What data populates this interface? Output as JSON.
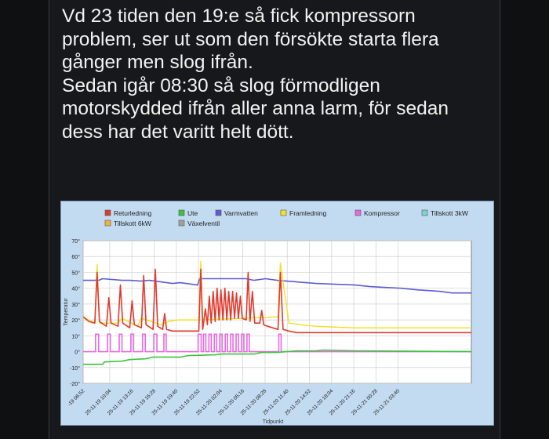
{
  "message": {
    "line1": "Vd 23 tiden den 19:e så fick kompressorn",
    "line2": "problem, ser ut som den försökte starta flera",
    "line3": "gånger men slog ifrån.",
    "line4": "Sedan igår 08:30 så slog förmodligen",
    "line5": "motorskydded ifrån aller anna larm, för sedan",
    "line6": "dess har det varitt helt dött."
  },
  "chart_data": {
    "type": "line",
    "ylabel": "Temperatur",
    "xlabel": "Tidpunkt",
    "ylim": [
      -20,
      70
    ],
    "yticks": [
      "70°",
      "60°",
      "50°",
      "40°",
      "30°",
      "20°",
      "10°",
      "0°",
      "-10°",
      "-20°"
    ],
    "xlim": [
      0,
      100
    ],
    "xticks": [
      "-19 06:52",
      "25-11-19 10:04",
      "25-11-19 13:16",
      "25-11-19 16:28",
      "25-11-19 19:40",
      "25-11-19 22:52",
      "25-11-20 02:04",
      "25-11-20 05:16",
      "25-11-20 08:28",
      "25-11-20 11:40",
      "25-11-20 14:52",
      "25-11-20 18:04",
      "25-11-20 21:16",
      "25-11-21 00:28",
      "25-11-21 03:40"
    ],
    "xtick_positions": [
      0,
      6.86,
      12.57,
      18.29,
      24.0,
      29.71,
      35.43,
      41.14,
      46.86,
      52.57,
      58.29,
      64.0,
      69.71,
      75.43,
      81.14
    ],
    "grid": true,
    "legend_position": "top",
    "legend": [
      {
        "name": "Returledning",
        "color": "#e03a2e"
      },
      {
        "name": "Ute",
        "color": "#39c43e"
      },
      {
        "name": "Varmvatten",
        "color": "#5b5cd6"
      },
      {
        "name": "Framledning",
        "color": "#f2e22b"
      },
      {
        "name": "Kompressor",
        "color": "#e56be0"
      },
      {
        "name": "Tillskott 3kW",
        "color": "#7ad6c9"
      },
      {
        "name": "Tillskott 6kW",
        "color": "#f2b23a"
      },
      {
        "name": "Växelventil",
        "color": "#a0a0a0"
      }
    ],
    "series": [
      {
        "name": "Varmvatten",
        "color": "#5b5cd6",
        "width": 1.6,
        "x": [
          0,
          4,
          5,
          10,
          12,
          15,
          17,
          23,
          25,
          29.5,
          30,
          42,
          44,
          47,
          50,
          55,
          60,
          65,
          70,
          74,
          78,
          82,
          86,
          89,
          92,
          95,
          100
        ],
        "y": [
          45,
          45,
          46,
          45,
          45,
          44.5,
          45,
          43,
          43.5,
          42,
          46,
          46,
          45,
          46,
          45,
          44,
          43,
          42.5,
          42,
          41,
          40.5,
          40,
          39,
          38.5,
          38,
          37,
          37
        ]
      },
      {
        "name": "Ute",
        "color": "#39c43e",
        "width": 1.6,
        "x": [
          0,
          5,
          5.5,
          10,
          12,
          16,
          18,
          25,
          27,
          34,
          36,
          44,
          46,
          50,
          55,
          60,
          62,
          70,
          100
        ],
        "y": [
          -8,
          -8,
          -6.5,
          -6,
          -5,
          -4.5,
          -3.5,
          -3.5,
          -2.5,
          -2,
          -1.5,
          -1.5,
          -0.5,
          -0.5,
          0.5,
          0.5,
          1,
          0.5,
          0
        ]
      },
      {
        "name": "Framledning",
        "color": "#f2e22b",
        "width": 1.5,
        "x": [
          0,
          3,
          3.6,
          4.2,
          9,
          10,
          14,
          15,
          20,
          22,
          24.5,
          29.8,
          30.3,
          30.8,
          50.2,
          50.8,
          53,
          56,
          60,
          70,
          100
        ],
        "y": [
          22,
          18,
          55,
          18,
          18,
          21,
          16,
          21,
          17,
          19,
          20,
          20,
          57,
          20,
          22,
          56,
          18,
          17,
          16,
          15,
          15
        ]
      },
      {
        "name": "Returledning",
        "color": "#e03a2e",
        "width": 1.6,
        "x": [
          0,
          1.5,
          3,
          3.6,
          4.2,
          6,
          6.6,
          7.2,
          9,
          9.6,
          10.2,
          12,
          12.6,
          13.2,
          15,
          15.6,
          16.2,
          18,
          18.6,
          19.2,
          20.5,
          21,
          21.5,
          23,
          29.8,
          30.3,
          30.8,
          31.5,
          32,
          32.5,
          33,
          33.5,
          34,
          34.5,
          35,
          35.5,
          36,
          36.5,
          37,
          37.5,
          38,
          38.5,
          39,
          39.5,
          40,
          40.5,
          41,
          42,
          42.5,
          43,
          43.6,
          44.2,
          45.5,
          46,
          46.5,
          47.5,
          50.2,
          50.8,
          51.5,
          53,
          55,
          58,
          60,
          70,
          80,
          100
        ],
        "y": [
          22,
          19,
          18,
          50,
          19,
          16,
          34,
          18,
          16,
          42,
          18,
          15,
          32,
          17,
          15,
          48,
          17,
          14,
          52,
          16,
          14,
          24,
          14,
          13,
          13,
          52,
          14,
          27,
          17,
          35,
          18,
          38,
          19,
          40,
          20,
          39,
          20,
          40,
          20,
          38,
          20,
          38,
          21,
          37,
          21,
          35,
          21,
          20,
          50,
          19,
          38,
          18,
          18,
          26,
          17,
          16,
          14,
          50,
          14,
          13,
          12,
          12,
          12,
          12,
          12,
          12
        ]
      },
      {
        "name": "Tillskott 6kW",
        "color": "#f2b23a",
        "width": 1.3,
        "x": [
          0,
          3.4,
          3.6,
          3.8,
          9.6,
          9.8,
          10.0,
          15.4,
          15.6,
          15.8,
          18.4,
          18.6,
          18.8,
          20.8,
          21.0,
          21.2,
          30.1,
          30.3,
          30.5,
          32.8,
          33.0,
          33.2,
          34.3,
          34.5,
          34.7,
          35.8,
          36.0,
          36.2,
          37.3,
          37.5,
          37.7,
          38.8,
          39.0,
          39.2,
          40.3,
          40.5,
          40.7,
          42.3,
          42.5,
          42.7,
          50.6,
          50.8,
          51.0,
          100
        ],
        "y": [
          null,
          null,
          58,
          null,
          null,
          53,
          null,
          null,
          54,
          null,
          null,
          55,
          null,
          null,
          32,
          null,
          null,
          57,
          null,
          null,
          44,
          null,
          null,
          45,
          null,
          null,
          45,
          null,
          null,
          43,
          null,
          null,
          42,
          null,
          null,
          40,
          null,
          null,
          57,
          null,
          null,
          57,
          null,
          null
        ]
      }
    ],
    "kompressor": {
      "name": "Kompressor",
      "color": "#e56be0",
      "base": 0,
      "high": 11,
      "pulses": [
        [
          3.2,
          4.0
        ],
        [
          6.3,
          7.0
        ],
        [
          9.3,
          10.0
        ],
        [
          12.3,
          13.0
        ],
        [
          15.3,
          16.0
        ],
        [
          18.2,
          19.0
        ],
        [
          20.8,
          21.4
        ],
        [
          29.6,
          30.4
        ],
        [
          31.0,
          31.6
        ],
        [
          32.4,
          33.0
        ],
        [
          33.8,
          34.4
        ],
        [
          35.2,
          35.8
        ],
        [
          36.6,
          37.2
        ],
        [
          38.0,
          38.6
        ],
        [
          39.4,
          40.0
        ],
        [
          40.8,
          41.4
        ],
        [
          42.2,
          42.8
        ],
        [
          50.4,
          51.0
        ]
      ]
    }
  }
}
